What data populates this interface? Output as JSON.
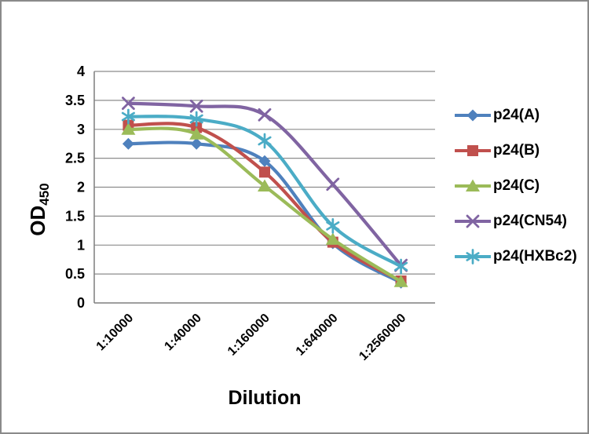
{
  "chart_data": {
    "type": "line",
    "title": "",
    "xlabel": "Dilution",
    "ylabel": "OD",
    "ylabel_subscript": "450",
    "categories": [
      "1:10000",
      "1:40000",
      "1:160000",
      "1:640000",
      "1:2560000"
    ],
    "series": [
      {
        "name": "p24(A)",
        "color": "#4F81BD",
        "marker": "diamond",
        "values": [
          2.75,
          2.75,
          2.45,
          1.03,
          0.35
        ]
      },
      {
        "name": "p24(B)",
        "color": "#C0504D",
        "marker": "square",
        "values": [
          3.07,
          3.03,
          2.26,
          1.05,
          0.38
        ]
      },
      {
        "name": "p24(C)",
        "color": "#9BBB59",
        "marker": "triangle",
        "values": [
          3.0,
          2.92,
          2.02,
          1.1,
          0.37
        ]
      },
      {
        "name": "p24(CN54)",
        "color": "#8064A2",
        "marker": "x",
        "values": [
          3.45,
          3.4,
          3.25,
          2.05,
          0.65
        ]
      },
      {
        "name": "p24(HXBc2)",
        "color": "#4BACC6",
        "marker": "asterisk",
        "values": [
          3.22,
          3.18,
          2.8,
          1.33,
          0.63
        ]
      }
    ],
    "y_ticks": [
      0,
      0.5,
      1,
      1.5,
      2,
      2.5,
      3,
      3.5,
      4
    ],
    "ylim": [
      0,
      4
    ],
    "grid": true,
    "smooth_lines": true,
    "legend_position": "right",
    "colors": {
      "gridline": "#8C8C8C",
      "axis": "#7F7F7F",
      "text": "#000000",
      "canvas_border": "#8A8A8A",
      "background": "#FFFFFF"
    }
  }
}
